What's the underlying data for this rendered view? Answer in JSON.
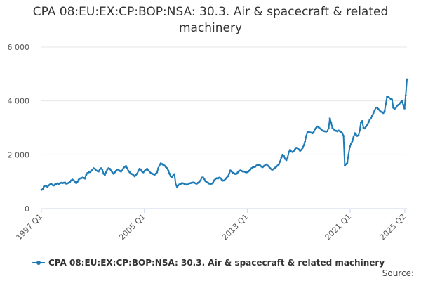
{
  "chart_data": {
    "type": "line",
    "title_lines": [
      "CPA 08:EU:EX:CP:BOP:NSA: 30.3. Air & spacecraft & related",
      "machinery"
    ],
    "xlabel": "",
    "ylabel": "",
    "x_tick_labels": [
      "1997 Q1",
      "2005 Q1",
      "2013 Q1",
      "2021 Q1",
      "2025 Q2"
    ],
    "y_tick_labels": [
      "0",
      "2 000",
      "4 000",
      "6 000"
    ],
    "y_ticks": [
      0,
      2000,
      4000,
      6000
    ],
    "ylim": [
      0,
      6000
    ],
    "x_start": "1997-01",
    "x_end": "2025-06",
    "grid": "horizontal",
    "legend_position": "bottom",
    "series": [
      {
        "name": "CPA 08:EU:EX:CP:BOP:NSA: 30.3. Air & spacecraft & related machinery",
        "color": "#1f7bb6",
        "frequency": "monthly",
        "values": [
          700,
          720,
          820,
          850,
          830,
          810,
          870,
          900,
          920,
          880,
          860,
          900,
          920,
          940,
          920,
          950,
          960,
          950,
          960,
          970,
          930,
          940,
          960,
          1000,
          1050,
          1080,
          1050,
          1000,
          950,
          1000,
          1080,
          1120,
          1130,
          1150,
          1140,
          1120,
          1250,
          1320,
          1350,
          1360,
          1400,
          1450,
          1500,
          1480,
          1420,
          1400,
          1380,
          1460,
          1500,
          1450,
          1300,
          1250,
          1350,
          1450,
          1500,
          1480,
          1420,
          1350,
          1300,
          1350,
          1400,
          1450,
          1450,
          1400,
          1380,
          1420,
          1500,
          1550,
          1580,
          1500,
          1400,
          1350,
          1300,
          1280,
          1250,
          1200,
          1260,
          1300,
          1400,
          1480,
          1450,
          1380,
          1350,
          1400,
          1450,
          1480,
          1420,
          1380,
          1320,
          1300,
          1280,
          1260,
          1300,
          1350,
          1500,
          1620,
          1680,
          1660,
          1620,
          1600,
          1550,
          1500,
          1420,
          1300,
          1200,
          1180,
          1230,
          1280,
          900,
          820,
          860,
          900,
          920,
          950,
          940,
          920,
          900,
          890,
          900,
          940,
          950,
          960,
          970,
          960,
          940,
          930,
          960,
          1000,
          1050,
          1150,
          1160,
          1100,
          1020,
          980,
          960,
          930,
          920,
          930,
          960,
          1050,
          1100,
          1130,
          1120,
          1150,
          1130,
          1080,
          1040,
          1050,
          1100,
          1150,
          1200,
          1300,
          1420,
          1380,
          1330,
          1310,
          1290,
          1300,
          1350,
          1400,
          1420,
          1400,
          1380,
          1380,
          1360,
          1350,
          1360,
          1400,
          1450,
          1500,
          1530,
          1550,
          1560,
          1600,
          1640,
          1620,
          1600,
          1560,
          1540,
          1580,
          1620,
          1640,
          1600,
          1560,
          1500,
          1460,
          1450,
          1480,
          1520,
          1560,
          1600,
          1650,
          1750,
          1900,
          2000,
          1950,
          1850,
          1800,
          1900,
          2100,
          2180,
          2120,
          2100,
          2150,
          2200,
          2260,
          2240,
          2200,
          2150,
          2180,
          2250,
          2350,
          2500,
          2700,
          2850,
          2840,
          2830,
          2820,
          2800,
          2850,
          2950,
          3000,
          3050,
          3020,
          2980,
          2950,
          2900,
          2880,
          2870,
          2860,
          2880,
          3000,
          3350,
          3200,
          3000,
          2950,
          2900,
          2890,
          2870,
          2900,
          2880,
          2850,
          2800,
          2700,
          1600,
          1650,
          1700,
          2000,
          2300,
          2400,
          2500,
          2650,
          2800,
          2750,
          2700,
          2720,
          2900,
          3200,
          3250,
          3000,
          2980,
          3050,
          3100,
          3200,
          3300,
          3350,
          3450,
          3550,
          3650,
          3750,
          3750,
          3700,
          3650,
          3600,
          3580,
          3550,
          3620,
          3900,
          4150,
          4150,
          4100,
          4080,
          4050,
          3750,
          3700,
          3750,
          3820,
          3850,
          3900,
          3950,
          4000,
          3850,
          3720,
          4200,
          4800
        ]
      }
    ]
  },
  "source_label": "Source:"
}
